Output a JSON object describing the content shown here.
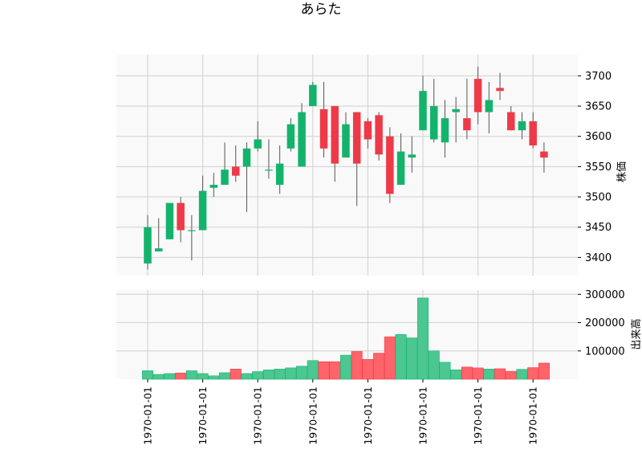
{
  "chart_data": {
    "type": "candlestick",
    "title": "あらた",
    "colors": {
      "up": "#14b36c",
      "down": "#ee3a48",
      "up_volume": "#4cc791",
      "down_volume": "#fe6469",
      "panel_background": "#f9f9f9",
      "grid": "#d0d0d0"
    },
    "grid": true,
    "price_panel": {
      "ylabel": "株価",
      "ylim": [
        3370,
        3735
      ],
      "yticks": [
        3400,
        3450,
        3500,
        3550,
        3600,
        3650,
        3700
      ],
      "ohlc": [
        {
          "o": 3390,
          "h": 3470,
          "l": 3380,
          "c": 3450
        },
        {
          "o": 3410,
          "h": 3465,
          "l": 3410,
          "c": 3415
        },
        {
          "o": 3430,
          "h": 3490,
          "l": 3430,
          "c": 3490
        },
        {
          "o": 3490,
          "h": 3500,
          "l": 3425,
          "c": 3445
        },
        {
          "o": 3445,
          "h": 3470,
          "l": 3395,
          "c": 3445
        },
        {
          "o": 3445,
          "h": 3535,
          "l": 3445,
          "c": 3510
        },
        {
          "o": 3515,
          "h": 3540,
          "l": 3500,
          "c": 3520
        },
        {
          "o": 3520,
          "h": 3590,
          "l": 3520,
          "c": 3545
        },
        {
          "o": 3550,
          "h": 3585,
          "l": 3525,
          "c": 3535
        },
        {
          "o": 3550,
          "h": 3590,
          "l": 3475,
          "c": 3580
        },
        {
          "o": 3580,
          "h": 3625,
          "l": 3575,
          "c": 3595
        },
        {
          "o": 3545,
          "h": 3595,
          "l": 3530,
          "c": 3545
        },
        {
          "o": 3520,
          "h": 3585,
          "l": 3505,
          "c": 3555
        },
        {
          "o": 3580,
          "h": 3630,
          "l": 3575,
          "c": 3620
        },
        {
          "o": 3550,
          "h": 3655,
          "l": 3550,
          "c": 3640
        },
        {
          "o": 3650,
          "h": 3690,
          "l": 3650,
          "c": 3685
        },
        {
          "o": 3645,
          "h": 3690,
          "l": 3565,
          "c": 3580
        },
        {
          "o": 3650,
          "h": 3650,
          "l": 3525,
          "c": 3555
        },
        {
          "o": 3565,
          "h": 3640,
          "l": 3565,
          "c": 3620
        },
        {
          "o": 3640,
          "h": 3640,
          "l": 3485,
          "c": 3555
        },
        {
          "o": 3625,
          "h": 3630,
          "l": 3580,
          "c": 3595
        },
        {
          "o": 3635,
          "h": 3640,
          "l": 3560,
          "c": 3570
        },
        {
          "o": 3600,
          "h": 3615,
          "l": 3490,
          "c": 3505
        },
        {
          "o": 3520,
          "h": 3605,
          "l": 3520,
          "c": 3575
        },
        {
          "o": 3565,
          "h": 3600,
          "l": 3540,
          "c": 3570
        },
        {
          "o": 3610,
          "h": 3700,
          "l": 3610,
          "c": 3675
        },
        {
          "o": 3595,
          "h": 3695,
          "l": 3590,
          "c": 3650
        },
        {
          "o": 3590,
          "h": 3660,
          "l": 3565,
          "c": 3630
        },
        {
          "o": 3640,
          "h": 3665,
          "l": 3590,
          "c": 3645
        },
        {
          "o": 3630,
          "h": 3695,
          "l": 3595,
          "c": 3610
        },
        {
          "o": 3695,
          "h": 3715,
          "l": 3620,
          "c": 3640
        },
        {
          "o": 3640,
          "h": 3690,
          "l": 3605,
          "c": 3660
        },
        {
          "o": 3680,
          "h": 3705,
          "l": 3660,
          "c": 3675
        },
        {
          "o": 3640,
          "h": 3650,
          "l": 3610,
          "c": 3610
        },
        {
          "o": 3610,
          "h": 3640,
          "l": 3595,
          "c": 3625
        },
        {
          "o": 3625,
          "h": 3640,
          "l": 3580,
          "c": 3585
        },
        {
          "o": 3575,
          "h": 3590,
          "l": 3540,
          "c": 3565
        }
      ]
    },
    "volume_panel": {
      "ylabel": "出来高",
      "ylim": [
        0,
        315000
      ],
      "yticks": [
        100000,
        200000,
        300000
      ],
      "values": [
        30000,
        17000,
        20000,
        22000,
        30000,
        20000,
        12000,
        23000,
        36000,
        20000,
        27000,
        33000,
        36000,
        40000,
        46000,
        66000,
        62000,
        62000,
        85000,
        98000,
        70000,
        92000,
        150000,
        158000,
        146000,
        287000,
        100000,
        60000,
        33000,
        43000,
        40000,
        36000,
        37000,
        28000,
        35000,
        41000,
        57000
      ]
    },
    "x_tick_labels": [
      "1970-01-01",
      "1970-01-01",
      "1970-01-01",
      "1970-01-01",
      "1970-01-01",
      "1970-01-01",
      "1970-01-01",
      "1970-01-01"
    ],
    "x_tick_indices": [
      0,
      5,
      10,
      15,
      20,
      25,
      30,
      35
    ]
  }
}
